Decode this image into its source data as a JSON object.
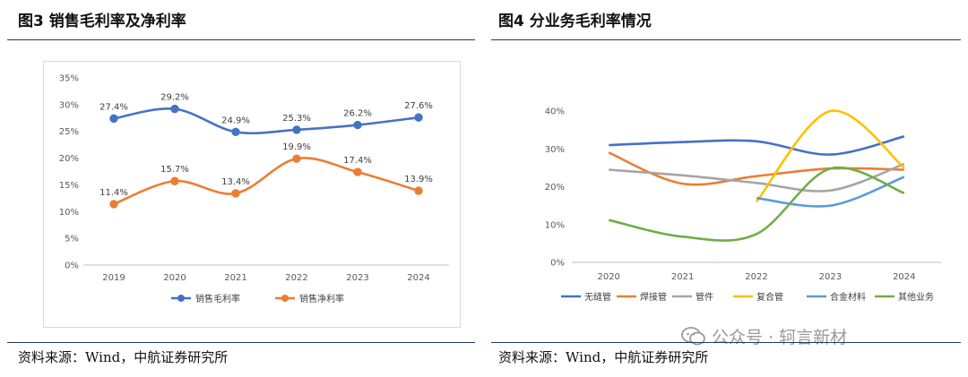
{
  "left": {
    "title": "图3  销售毛利率及净利率",
    "source": "资料来源：Wind，中航证券研究所"
  },
  "right": {
    "title": "图4  分业务毛利率情况",
    "source": "资料来源：Wind，中航证券研究所",
    "watermark": "公众号 · 轲言新材"
  },
  "colors": {
    "blue": "#4472c4",
    "orange": "#ed7d31",
    "gray": "#a5a5a5",
    "gold": "#ffc000",
    "lightblue": "#5b9bd5",
    "green": "#70ad47",
    "rule": "#1f3b5e"
  },
  "chart_data": [
    {
      "type": "line",
      "categories": [
        "2019",
        "2020",
        "2021",
        "2022",
        "2023",
        "2024"
      ],
      "ylim": [
        0,
        35
      ],
      "yticks": [
        "0%",
        "5%",
        "10%",
        "15%",
        "20%",
        "25%",
        "30%",
        "35%"
      ],
      "markers": true,
      "data_labels": true,
      "legend": "bottom",
      "series": [
        {
          "name": "销售毛利率",
          "values": [
            27.4,
            29.2,
            24.9,
            25.3,
            26.2,
            27.6
          ],
          "labels": [
            "27.4%",
            "29.2%",
            "24.9%",
            "25.3%",
            "26.2%",
            "27.6%"
          ],
          "color": "#4472c4"
        },
        {
          "name": "销售净利率",
          "values": [
            11.4,
            15.7,
            13.4,
            19.9,
            17.4,
            13.9
          ],
          "labels": [
            "11.4%",
            "15.7%",
            "13.4%",
            "19.9%",
            "17.4%",
            "13.9%"
          ],
          "color": "#ed7d31"
        }
      ]
    },
    {
      "type": "line",
      "smooth": true,
      "categories": [
        "2020",
        "2021",
        "2022",
        "2023",
        "2024"
      ],
      "ylim": [
        0,
        40
      ],
      "yticks": [
        "0%",
        "10%",
        "20%",
        "30%",
        "40%"
      ],
      "legend": "bottom",
      "series": [
        {
          "name": "无缝管",
          "values": [
            31,
            31.8,
            32,
            28.5,
            33.3
          ],
          "color": "#4472c4"
        },
        {
          "name": "焊接管",
          "values": [
            29,
            20.8,
            22.8,
            24.8,
            24.5
          ],
          "color": "#ed7d31"
        },
        {
          "name": "管件",
          "values": [
            24.5,
            23,
            21,
            19,
            26
          ],
          "color": "#a5a5a5"
        },
        {
          "name": "复合管",
          "values": [
            null,
            null,
            16,
            40,
            25
          ],
          "color": "#ffc000"
        },
        {
          "name": "合金材料",
          "values": [
            null,
            null,
            17,
            15,
            22.6
          ],
          "color": "#5b9bd5"
        },
        {
          "name": "其他业务",
          "values": [
            11.2,
            6.8,
            7.5,
            24.8,
            18.3
          ],
          "color": "#70ad47"
        }
      ]
    }
  ]
}
